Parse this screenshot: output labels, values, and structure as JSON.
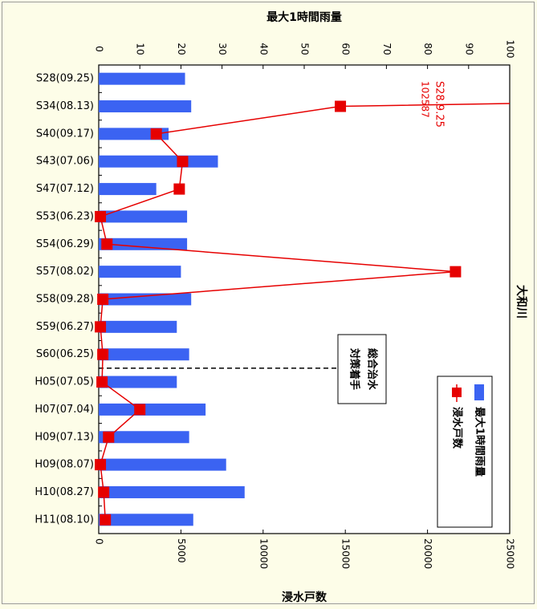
{
  "chart_data": {
    "type": "bar+line",
    "title": "",
    "river_label": "大和川",
    "categories": [
      "S28(09.25)",
      "S34(08.13)",
      "S40(09.17)",
      "S43(07.06)",
      "S47(07.12)",
      "S53(06.23)",
      "S54(06.29)",
      "S57(08.02)",
      "S58(09.28)",
      "S59(06.27)",
      "S60(06.25)",
      "H05(07.05)",
      "H07(07.04)",
      "H09(07.13)",
      "H09(08.07)",
      "H10(08.27)",
      "H11(08.10)"
    ],
    "series": [
      {
        "name": "最大1時間雨量",
        "type": "bar",
        "axis": "top",
        "color": "#3b63f2",
        "values": [
          21,
          22.5,
          17,
          29,
          14,
          21.5,
          21.5,
          20,
          22.5,
          19,
          22,
          19,
          26,
          22,
          31,
          35.5,
          23
        ]
      },
      {
        "name": "浸水戸数",
        "type": "line",
        "axis": "bottom",
        "color": "#e60000",
        "values": [
          null,
          14700,
          3500,
          5100,
          4900,
          100,
          500,
          21700,
          250,
          100,
          250,
          200,
          2500,
          600,
          100,
          300,
          400
        ]
      }
    ],
    "top_axis": {
      "label": "最大1時間雨量",
      "range": [
        0,
        100
      ],
      "ticks": [
        0,
        10,
        20,
        30,
        40,
        50,
        60,
        70,
        80,
        90,
        100
      ]
    },
    "bottom_axis": {
      "label": "浸水戸数",
      "range": [
        0,
        25000
      ],
      "ticks": [
        0,
        5000,
        10000,
        15000,
        20000,
        25000
      ]
    },
    "annotations": {
      "offscale_label": "S28.9.25",
      "offscale_value": "102587",
      "policy_line_label": "総合治水\n対策着手"
    },
    "legend": {
      "position": "bottom-right",
      "entries": [
        "最大1時間雨量",
        "浸水戸数"
      ]
    }
  }
}
